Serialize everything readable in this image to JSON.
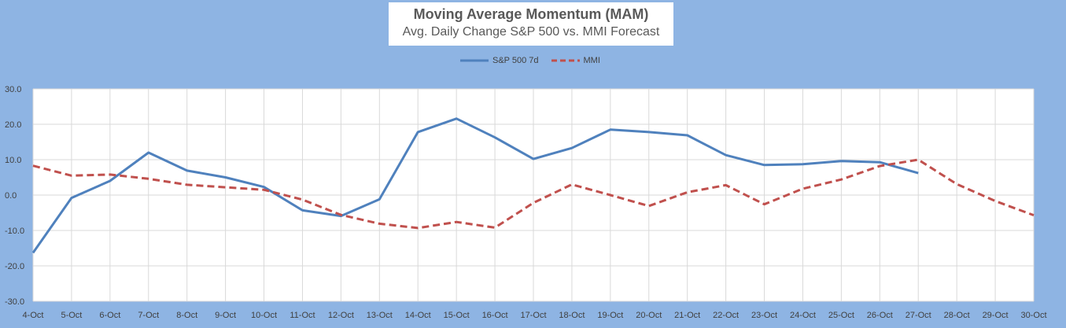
{
  "chart_data": {
    "type": "line",
    "title": "Moving Average Momentum (MAM)",
    "subtitle": "Avg. Daily Change S&P 500 vs. MMI Forecast",
    "xlabel": "",
    "ylabel": "",
    "ylim": [
      -30,
      30
    ],
    "yticks": [
      "30.0",
      "20.0",
      "10.0",
      "0.0",
      "-10.0",
      "-20.0",
      "-30.0"
    ],
    "ytick_values": [
      30,
      20,
      10,
      0,
      -10,
      -20,
      -30
    ],
    "grid": true,
    "legend_position": "top-center",
    "categories": [
      "4-Oct",
      "5-Oct",
      "6-Oct",
      "7-Oct",
      "8-Oct",
      "9-Oct",
      "10-Oct",
      "11-Oct",
      "12-Oct",
      "13-Oct",
      "14-Oct",
      "15-Oct",
      "16-Oct",
      "17-Oct",
      "18-Oct",
      "19-Oct",
      "20-Oct",
      "21-Oct",
      "22-Oct",
      "23-Oct",
      "24-Oct",
      "25-Oct",
      "26-Oct",
      "27-Oct",
      "28-Oct",
      "29-Oct",
      "30-Oct"
    ],
    "series": [
      {
        "name": "S&P 500 7d",
        "color": "#4F81BD",
        "style": "solid",
        "values": [
          -16.3,
          -0.8,
          4.0,
          12.0,
          6.9,
          5.0,
          2.3,
          -4.3,
          -5.9,
          -1.2,
          17.8,
          21.6,
          16.3,
          10.2,
          13.3,
          18.5,
          17.8,
          16.9,
          11.3,
          8.5,
          8.7,
          9.6,
          9.3,
          6.2,
          null,
          null,
          null
        ]
      },
      {
        "name": "MMI",
        "color": "#C0504D",
        "style": "dashed",
        "values": [
          8.3,
          5.5,
          5.8,
          4.6,
          2.9,
          2.2,
          1.5,
          -1.3,
          -5.6,
          -8.1,
          -9.3,
          -7.6,
          -9.2,
          -2.2,
          3.0,
          0.0,
          -3.1,
          0.8,
          2.8,
          -2.6,
          1.8,
          4.4,
          8.2,
          10.0,
          3.1,
          -1.7,
          -5.7
        ]
      }
    ]
  }
}
